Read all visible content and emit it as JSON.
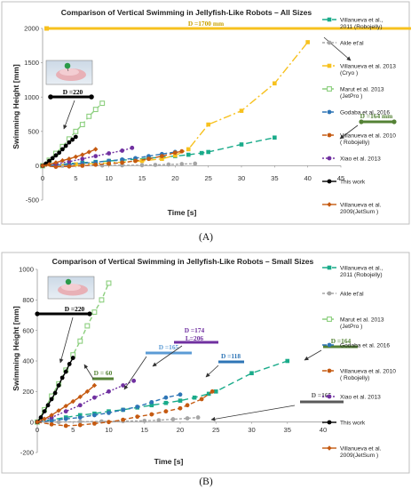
{
  "chart_data": [
    {
      "type": "line",
      "title": "Comparison of Vertical Swimming in Jellyfish-Like Robots – All Sizes",
      "xlabel": "Time  [s]",
      "ylabel": "Swimming Height  [mm]",
      "xlim": [
        0,
        45
      ],
      "ylim": [
        -500,
        2000
      ],
      "xticks": [
        "0",
        "5",
        "10",
        "15",
        "20",
        "25",
        "30",
        "35",
        "40",
        "45"
      ],
      "yticks": [
        "-500",
        "0",
        "500",
        "1000",
        "1500",
        "2000"
      ],
      "grid": false,
      "legend_position": "right",
      "panel_label": "(A)",
      "series": [
        {
          "name": "Villanueva et al., 2011 (Robojelly)",
          "color": "#1aab8a",
          "marker": "square",
          "dash": "7,4",
          "x": [
            0,
            2,
            4,
            6,
            8,
            10,
            12,
            14,
            16,
            18,
            20,
            22,
            24,
            25,
            30,
            35
          ],
          "y": [
            0,
            15,
            30,
            45,
            55,
            70,
            80,
            95,
            110,
            125,
            140,
            160,
            185,
            200,
            310,
            410
          ]
        },
        {
          "name": "Akle et'al",
          "color": "#a6a6a6",
          "marker": "circle",
          "dash": "3,2",
          "x": [
            0,
            3,
            6,
            9,
            12,
            15,
            17,
            19,
            21,
            23
          ],
          "y": [
            0,
            0,
            2,
            4,
            6,
            8,
            12,
            18,
            24,
            30
          ]
        },
        {
          "name": "Villanueva et al. 2013 (Cryo )",
          "color": "#f7c11e",
          "marker": "square",
          "dash": "9,3,2,3",
          "x": [
            0,
            5,
            10,
            15,
            18,
            20,
            22,
            25,
            30,
            35,
            40
          ],
          "y": [
            0,
            20,
            40,
            70,
            100,
            150,
            240,
            600,
            800,
            1200,
            1800
          ]
        },
        {
          "name": "Marut et al. 2013 (JetPro )",
          "color": "#8ccf7e",
          "marker": "square-open",
          "dash": "5,3",
          "x": [
            0,
            1,
            2,
            3,
            4,
            5,
            6,
            7,
            8,
            9
          ],
          "y": [
            0,
            80,
            180,
            280,
            390,
            500,
            600,
            720,
            820,
            910
          ]
        },
        {
          "name": "Godaba et al. 2016",
          "color": "#2e75b6",
          "marker": "circle",
          "dash": "5,3",
          "x": [
            0,
            2,
            4,
            6,
            8,
            10,
            12,
            14,
            16,
            18,
            20
          ],
          "y": [
            0,
            10,
            20,
            35,
            50,
            70,
            90,
            110,
            140,
            170,
            200
          ]
        },
        {
          "name": "Villanueva et al. 2010 ( Robojelly)",
          "color": "#c55a11",
          "marker": "circle",
          "dash": "5,3",
          "x": [
            0,
            2,
            4,
            6,
            8,
            10,
            12,
            14,
            16,
            18,
            20,
            21
          ],
          "y": [
            0,
            -15,
            -10,
            0,
            15,
            30,
            45,
            70,
            100,
            140,
            190,
            210
          ]
        },
        {
          "name": "Xiao et al. 2013",
          "color": "#7030a0",
          "marker": "circle",
          "dash": "2,2",
          "x": [
            0,
            2,
            4,
            6,
            8,
            10,
            12,
            13.5
          ],
          "y": [
            0,
            30,
            60,
            100,
            140,
            180,
            220,
            260
          ]
        },
        {
          "name": "This work",
          "color": "#000000",
          "marker": "circle",
          "dash": "",
          "x": [
            0,
            0.5,
            1,
            1.5,
            2,
            2.5,
            3,
            3.5,
            4,
            4.5,
            5
          ],
          "y": [
            0,
            30,
            70,
            110,
            150,
            190,
            240,
            290,
            340,
            380,
            420
          ]
        },
        {
          "name": "Villanueva et al. 2009(JetSum )",
          "color": "#c55a11",
          "marker": "diamond",
          "dash": "",
          "x": [
            0,
            1,
            2,
            3,
            4,
            5,
            6,
            7,
            8
          ],
          "y": [
            0,
            20,
            45,
            75,
            100,
            130,
            160,
            200,
            240
          ]
        }
      ],
      "annotations": [
        {
          "text": "D =1700 mm",
          "color": "#f7c11e"
        },
        {
          "text": "D =220",
          "color": "#000000"
        },
        {
          "text": "D =164 mm",
          "color": "#548235"
        }
      ]
    },
    {
      "type": "line",
      "title": "Comparison of Vertical Swimming in Jellyfish-Like Robots – Small Sizes",
      "xlabel": "Time  [s]",
      "ylabel": "Swimming Height  [mm]",
      "xlim": [
        0,
        40
      ],
      "ylim": [
        -200,
        1000
      ],
      "xticks": [
        "0",
        "5",
        "10",
        "15",
        "20",
        "25",
        "30",
        "35",
        "40"
      ],
      "yticks": [
        "-200",
        "0",
        "200",
        "400",
        "600",
        "800",
        "1000"
      ],
      "grid": false,
      "legend_position": "right",
      "panel_label": "(B)",
      "series": [
        {
          "name": "Villanueva et al., 2011 (Robojelly)",
          "color": "#1aab8a",
          "marker": "square",
          "dash": "7,4",
          "x": [
            0,
            2,
            4,
            6,
            8,
            10,
            12,
            14,
            16,
            18,
            20,
            22,
            24,
            25,
            30,
            35
          ],
          "y": [
            0,
            15,
            30,
            45,
            55,
            70,
            80,
            95,
            110,
            125,
            140,
            160,
            185,
            200,
            320,
            400
          ]
        },
        {
          "name": "Akle et'al",
          "color": "#a6a6a6",
          "marker": "circle",
          "dash": "3,2",
          "x": [
            0,
            3,
            6,
            9,
            12,
            15,
            17,
            19,
            21,
            22.5
          ],
          "y": [
            0,
            0,
            2,
            4,
            6,
            8,
            12,
            18,
            24,
            30
          ]
        },
        {
          "name": "Marut et al. 2013 (JetPro )",
          "color": "#8ccf7e",
          "marker": "square-open",
          "dash": "5,3",
          "x": [
            0,
            1,
            2,
            3,
            4,
            5,
            6,
            7,
            8,
            9,
            10
          ],
          "y": [
            0,
            80,
            170,
            250,
            340,
            440,
            530,
            630,
            720,
            800,
            910
          ]
        },
        {
          "name": "Godaba et al. 2016",
          "color": "#2e75b6",
          "marker": "circle",
          "dash": "5,3",
          "x": [
            0,
            2,
            4,
            6,
            8,
            10,
            12,
            14,
            16,
            18,
            20
          ],
          "y": [
            0,
            10,
            20,
            30,
            45,
            60,
            80,
            100,
            130,
            160,
            180
          ]
        },
        {
          "name": "Villanueva et al. 2010 ( Robojelly)",
          "color": "#c55a11",
          "marker": "circle",
          "dash": "5,3",
          "x": [
            0,
            2,
            4,
            6,
            8,
            10,
            12,
            14,
            16,
            18,
            20,
            21,
            23,
            24.5
          ],
          "y": [
            0,
            -15,
            -25,
            -20,
            -10,
            0,
            15,
            35,
            50,
            70,
            90,
            110,
            150,
            200
          ]
        },
        {
          "name": "Xiao et al. 2013",
          "color": "#7030a0",
          "marker": "circle",
          "dash": "2,2",
          "x": [
            0,
            2,
            4,
            6,
            8,
            10,
            12,
            13.5
          ],
          "y": [
            0,
            30,
            70,
            110,
            160,
            200,
            240,
            270
          ]
        },
        {
          "name": "This work",
          "color": "#000000",
          "marker": "circle",
          "dash": "",
          "x": [
            0,
            0.5,
            1,
            1.5,
            2,
            2.5,
            3,
            3.5,
            4,
            4.5,
            5
          ],
          "y": [
            0,
            30,
            70,
            110,
            150,
            190,
            240,
            290,
            330,
            380,
            420
          ]
        },
        {
          "name": "Villanueva et al. 2009(JetSum )",
          "color": "#c55a11",
          "marker": "diamond",
          "dash": "",
          "x": [
            0,
            1,
            2,
            3,
            4,
            5,
            6,
            7,
            8
          ],
          "y": [
            0,
            20,
            45,
            75,
            105,
            135,
            165,
            200,
            240
          ]
        }
      ],
      "annotations": [
        {
          "text": "D =220",
          "color": "#000000"
        },
        {
          "text": "D = 60",
          "color": "#548235"
        },
        {
          "text": "D =165",
          "color": "#5b9bd5"
        },
        {
          "text": "D =174",
          "color": "#7030a0"
        },
        {
          "text": "L=206",
          "color": "#7030a0"
        },
        {
          "text": "D =118",
          "color": "#2e75b6"
        },
        {
          "text": "D =164",
          "color": "#548235"
        },
        {
          "text": "D =165",
          "color": "#595959"
        }
      ]
    }
  ]
}
